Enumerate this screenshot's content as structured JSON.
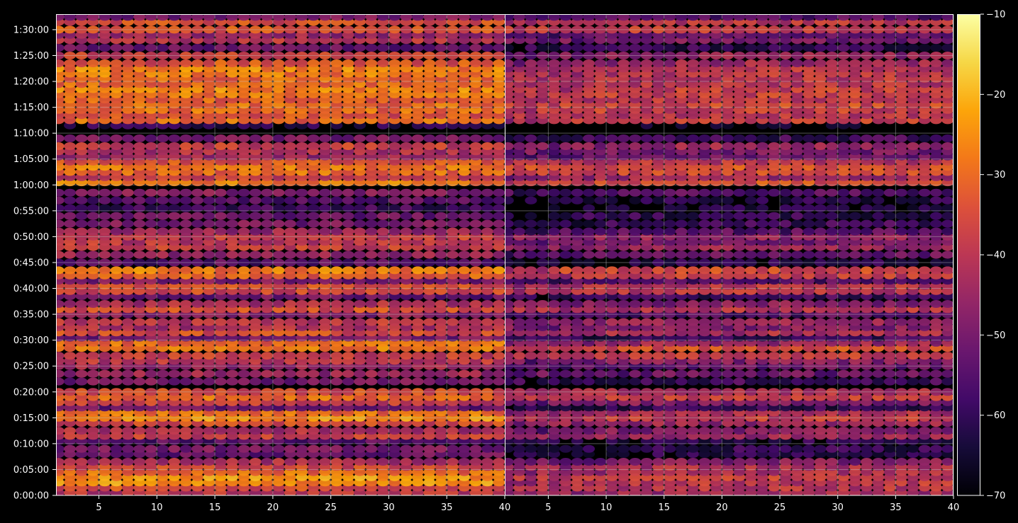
{
  "chart_data": {
    "type": "heatmap",
    "title": "",
    "colormap": "inferno",
    "background": "#000000",
    "colorbar": {
      "min": -70,
      "max": -10,
      "ticks": [
        -10,
        -20,
        -30,
        -40,
        -50,
        -60,
        -70
      ],
      "tick_labels": [
        "−10",
        "−20",
        "−30",
        "−40",
        "−50",
        "−60",
        "−70"
      ]
    },
    "y_axis": {
      "label": "",
      "range_seconds": [
        0,
        5580
      ],
      "tick_labels": [
        "0:00:00",
        "0:05:00",
        "0:10:00",
        "0:15:00",
        "0:20:00",
        "0:25:00",
        "0:30:00",
        "0:35:00",
        "0:40:00",
        "0:45:00",
        "0:50:00",
        "0:55:00",
        "1:00:00",
        "1:05:00",
        "1:10:00",
        "1:15:00",
        "1:20:00",
        "1:25:00",
        "1:30:00"
      ]
    },
    "panels": [
      {
        "name": "",
        "x_range": [
          1.3,
          40
        ],
        "x_tick_labels": [
          "5",
          "10",
          "15",
          "20",
          "25",
          "30",
          "35",
          "40"
        ]
      },
      {
        "name": "",
        "x_range": [
          1.3,
          40
        ],
        "x_tick_labels": [
          "5",
          "10",
          "15",
          "20",
          "25",
          "30",
          "35",
          "40"
        ]
      }
    ],
    "grid": true,
    "row_times_min": [
      0.5,
      1.5,
      2.5,
      3.5,
      4.5,
      5.5,
      6.5,
      8,
      9,
      10.5,
      11.5,
      12.5,
      14,
      15,
      16,
      17,
      18,
      19,
      20,
      22,
      23.5,
      25,
      26,
      27,
      28.5,
      29.5,
      30.5,
      31.5,
      32.5,
      33.5,
      35,
      36,
      37,
      38.5,
      39.5,
      40.5,
      41.5,
      42.5,
      43.5,
      45,
      46.5,
      48,
      49,
      50,
      51,
      52.5,
      54,
      55.5,
      57,
      58.5,
      60.5,
      61.5,
      62.5,
      63.5,
      64.5,
      65.5,
      66.5,
      67.5,
      69,
      71.5,
      72.5,
      73.5,
      74.5,
      75.5,
      76.5,
      77.5,
      78.5,
      79.5,
      80.5,
      81.5,
      82.5,
      83.5,
      85,
      86.5,
      88,
      89,
      90,
      91.5,
      92.5
    ],
    "row_levels_left_db": [
      -40,
      -35,
      -25,
      -24,
      -30,
      -36,
      -42,
      -52,
      -50,
      -55,
      -38,
      -42,
      -36,
      -25,
      -30,
      -52,
      -38,
      -30,
      -35,
      -50,
      -45,
      -45,
      -40,
      -38,
      -28,
      -30,
      -50,
      -35,
      -42,
      -40,
      -48,
      -35,
      -42,
      -52,
      -36,
      -34,
      -50,
      -32,
      -28,
      -55,
      -45,
      -38,
      -40,
      -38,
      -45,
      -50,
      -52,
      -58,
      -55,
      -48,
      -28,
      -38,
      -30,
      -28,
      -34,
      -45,
      -42,
      -38,
      -50,
      -62,
      -30,
      -34,
      -30,
      -30,
      -32,
      -28,
      -27,
      -30,
      -30,
      -28,
      -27,
      -34,
      -38,
      -52,
      -40,
      -45,
      -34,
      -35,
      -50
    ],
    "row_levels_right_db": [
      -44,
      -40,
      -40,
      -38,
      -42,
      -42,
      -48,
      -62,
      -60,
      -62,
      -45,
      -48,
      -45,
      -38,
      -42,
      -60,
      -48,
      -38,
      -42,
      -58,
      -52,
      -52,
      -48,
      -38,
      -35,
      -45,
      -58,
      -42,
      -48,
      -45,
      -55,
      -40,
      -48,
      -58,
      -40,
      -40,
      -55,
      -38,
      -36,
      -62,
      -52,
      -45,
      -50,
      -46,
      -55,
      -58,
      -60,
      -64,
      -62,
      -55,
      -34,
      -44,
      -36,
      -34,
      -40,
      -52,
      -50,
      -45,
      -58,
      -68,
      -38,
      -40,
      -38,
      -36,
      -40,
      -38,
      -38,
      -40,
      -40,
      -40,
      -40,
      -44,
      -46,
      -60,
      -50,
      -52,
      -38,
      -40,
      -55
    ]
  }
}
